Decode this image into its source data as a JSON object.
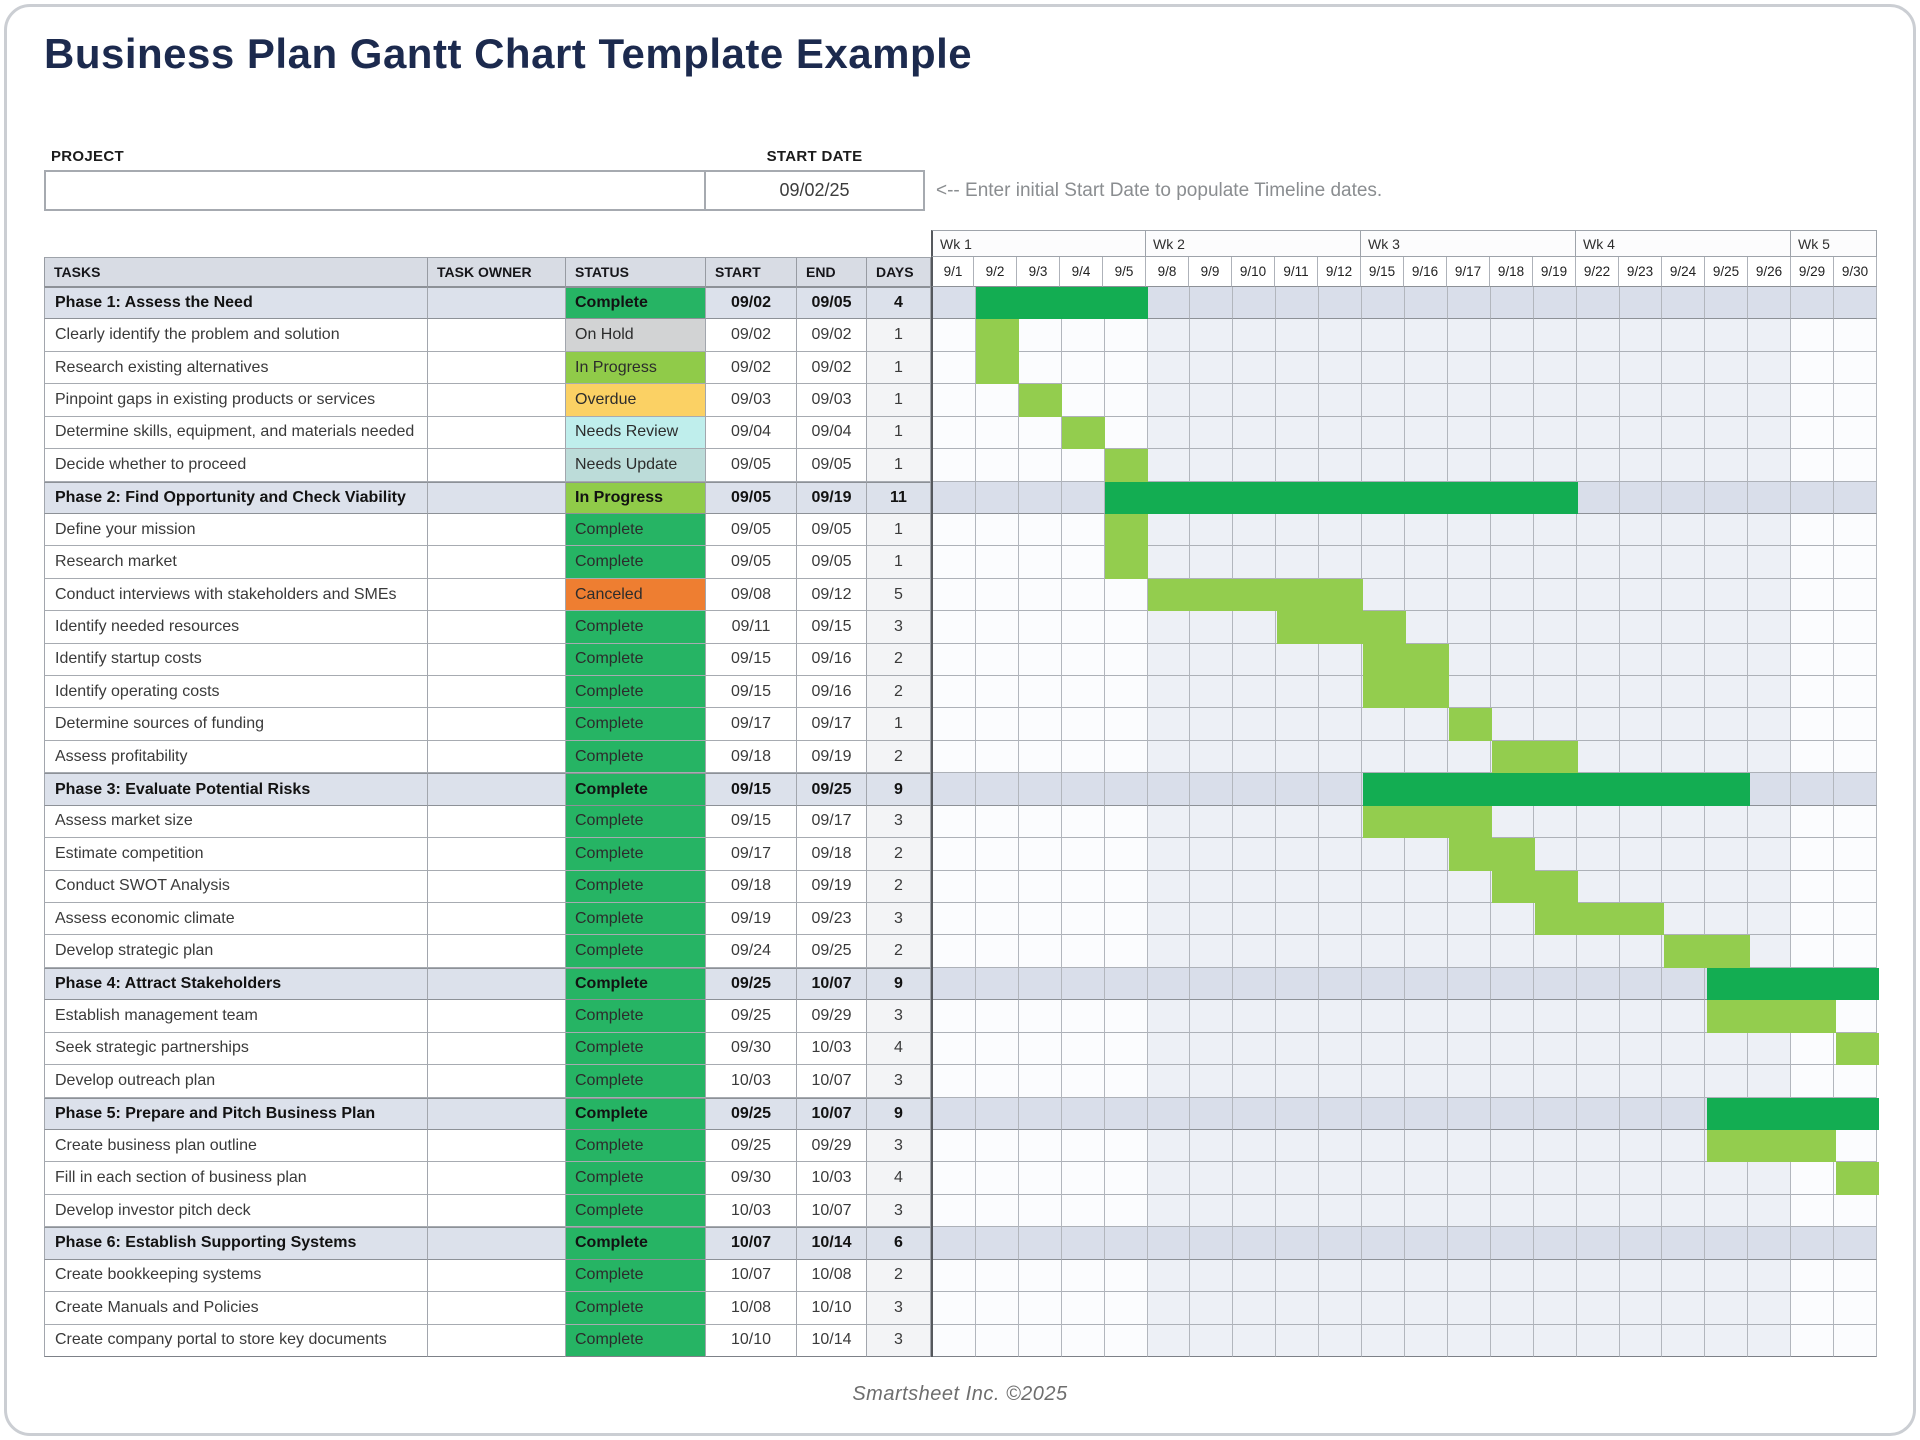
{
  "title": "Business Plan Gantt Chart Template Example",
  "form": {
    "project_label": "PROJECT",
    "project_value": "",
    "start_date_label": "START DATE",
    "start_date_value": "09/02/25",
    "instruction": "<-- Enter initial Start Date to populate Timeline dates."
  },
  "chart_data": {
    "type": "table",
    "subtype": "gantt",
    "columns": [
      "TASKS",
      "TASK OWNER",
      "STATUS",
      "START",
      "END",
      "DAYS"
    ],
    "weeks": [
      {
        "label": "Wk 1",
        "days": [
          "9/1",
          "9/2",
          "9/3",
          "9/4",
          "9/5"
        ],
        "shaded": false
      },
      {
        "label": "Wk 2",
        "days": [
          "9/8",
          "9/9",
          "9/10",
          "9/11",
          "9/12"
        ],
        "shaded": true
      },
      {
        "label": "Wk 3",
        "days": [
          "9/15",
          "9/16",
          "9/17",
          "9/18",
          "9/19"
        ],
        "shaded": true
      },
      {
        "label": "Wk 4",
        "days": [
          "9/22",
          "9/23",
          "9/24",
          "9/25",
          "9/26"
        ],
        "shaded": true
      },
      {
        "label": "Wk 5",
        "days": [
          "9/29",
          "9/30"
        ],
        "shaded": false
      }
    ],
    "statuses": [
      {
        "name": "Complete",
        "color": "#26b464"
      },
      {
        "name": "On Hold",
        "color": "#d2d3d4"
      },
      {
        "name": "In Progress",
        "color": "#90cb49"
      },
      {
        "name": "Overdue",
        "color": "#fbd164"
      },
      {
        "name": "Needs Review",
        "color": "#bfeeec"
      },
      {
        "name": "Needs Update",
        "color": "#bcdcd9"
      },
      {
        "name": "Canceled",
        "color": "#ee7e31"
      }
    ],
    "rows": [
      {
        "task": "Phase 1: Assess the Need",
        "owner": "",
        "status": "Complete",
        "start": "09/02",
        "end": "09/05",
        "days": "4",
        "phase": true,
        "bar_start": 1,
        "bar_end": 4,
        "bar_clip": false
      },
      {
        "task": "Clearly identify the problem and solution",
        "owner": "",
        "status": "On Hold",
        "start": "09/02",
        "end": "09/02",
        "days": "1",
        "phase": false,
        "bar_start": 1,
        "bar_end": 1,
        "bar_clip": false
      },
      {
        "task": "Research existing alternatives",
        "owner": "",
        "status": "In Progress",
        "start": "09/02",
        "end": "09/02",
        "days": "1",
        "phase": false,
        "bar_start": 1,
        "bar_end": 1,
        "bar_clip": false
      },
      {
        "task": "Pinpoint gaps in existing products or services",
        "owner": "",
        "status": "Overdue",
        "start": "09/03",
        "end": "09/03",
        "days": "1",
        "phase": false,
        "bar_start": 2,
        "bar_end": 2,
        "bar_clip": false
      },
      {
        "task": "Determine skills, equipment, and materials needed",
        "owner": "",
        "status": "Needs Review",
        "start": "09/04",
        "end": "09/04",
        "days": "1",
        "phase": false,
        "bar_start": 3,
        "bar_end": 3,
        "bar_clip": false
      },
      {
        "task": "Decide whether to proceed",
        "owner": "",
        "status": "Needs Update",
        "start": "09/05",
        "end": "09/05",
        "days": "1",
        "phase": false,
        "bar_start": 4,
        "bar_end": 4,
        "bar_clip": false
      },
      {
        "task": "Phase 2: Find Opportunity and Check Viability",
        "owner": "",
        "status": "In Progress",
        "start": "09/05",
        "end": "09/19",
        "days": "11",
        "phase": true,
        "bar_start": 4,
        "bar_end": 14,
        "bar_clip": false
      },
      {
        "task": "Define your mission",
        "owner": "",
        "status": "Complete",
        "start": "09/05",
        "end": "09/05",
        "days": "1",
        "phase": false,
        "bar_start": 4,
        "bar_end": 4,
        "bar_clip": false
      },
      {
        "task": "Research market",
        "owner": "",
        "status": "Complete",
        "start": "09/05",
        "end": "09/05",
        "days": "1",
        "phase": false,
        "bar_start": 4,
        "bar_end": 4,
        "bar_clip": false
      },
      {
        "task": "Conduct interviews with stakeholders and SMEs",
        "owner": "",
        "status": "Canceled",
        "start": "09/08",
        "end": "09/12",
        "days": "5",
        "phase": false,
        "bar_start": 5,
        "bar_end": 9,
        "bar_clip": false
      },
      {
        "task": "Identify needed resources",
        "owner": "",
        "status": "Complete",
        "start": "09/11",
        "end": "09/15",
        "days": "3",
        "phase": false,
        "bar_start": 8,
        "bar_end": 10,
        "bar_clip": false
      },
      {
        "task": "Identify startup costs",
        "owner": "",
        "status": "Complete",
        "start": "09/15",
        "end": "09/16",
        "days": "2",
        "phase": false,
        "bar_start": 10,
        "bar_end": 11,
        "bar_clip": false
      },
      {
        "task": "Identify operating costs",
        "owner": "",
        "status": "Complete",
        "start": "09/15",
        "end": "09/16",
        "days": "2",
        "phase": false,
        "bar_start": 10,
        "bar_end": 11,
        "bar_clip": false
      },
      {
        "task": "Determine sources of funding",
        "owner": "",
        "status": "Complete",
        "start": "09/17",
        "end": "09/17",
        "days": "1",
        "phase": false,
        "bar_start": 12,
        "bar_end": 12,
        "bar_clip": false
      },
      {
        "task": "Assess profitability",
        "owner": "",
        "status": "Complete",
        "start": "09/18",
        "end": "09/19",
        "days": "2",
        "phase": false,
        "bar_start": 13,
        "bar_end": 14,
        "bar_clip": false
      },
      {
        "task": "Phase 3: Evaluate Potential Risks",
        "owner": "",
        "status": "Complete",
        "start": "09/15",
        "end": "09/25",
        "days": "9",
        "phase": true,
        "bar_start": 10,
        "bar_end": 18,
        "bar_clip": false
      },
      {
        "task": "Assess market size",
        "owner": "",
        "status": "Complete",
        "start": "09/15",
        "end": "09/17",
        "days": "3",
        "phase": false,
        "bar_start": 10,
        "bar_end": 12,
        "bar_clip": false
      },
      {
        "task": "Estimate competition",
        "owner": "",
        "status": "Complete",
        "start": "09/17",
        "end": "09/18",
        "days": "2",
        "phase": false,
        "bar_start": 12,
        "bar_end": 13,
        "bar_clip": false
      },
      {
        "task": "Conduct SWOT Analysis",
        "owner": "",
        "status": "Complete",
        "start": "09/18",
        "end": "09/19",
        "days": "2",
        "phase": false,
        "bar_start": 13,
        "bar_end": 14,
        "bar_clip": false
      },
      {
        "task": "Assess economic climate",
        "owner": "",
        "status": "Complete",
        "start": "09/19",
        "end": "09/23",
        "days": "3",
        "phase": false,
        "bar_start": 14,
        "bar_end": 16,
        "bar_clip": false
      },
      {
        "task": "Develop strategic plan",
        "owner": "",
        "status": "Complete",
        "start": "09/24",
        "end": "09/25",
        "days": "2",
        "phase": false,
        "bar_start": 17,
        "bar_end": 18,
        "bar_clip": false
      },
      {
        "task": "Phase 4: Attract Stakeholders",
        "owner": "",
        "status": "Complete",
        "start": "09/25",
        "end": "10/07",
        "days": "9",
        "phase": true,
        "bar_start": 18,
        "bar_end": 21,
        "bar_clip": true
      },
      {
        "task": "Establish management team",
        "owner": "",
        "status": "Complete",
        "start": "09/25",
        "end": "09/29",
        "days": "3",
        "phase": false,
        "bar_start": 18,
        "bar_end": 20,
        "bar_clip": false
      },
      {
        "task": "Seek strategic partnerships",
        "owner": "",
        "status": "Complete",
        "start": "09/30",
        "end": "10/03",
        "days": "4",
        "phase": false,
        "bar_start": 21,
        "bar_end": 21,
        "bar_clip": true
      },
      {
        "task": "Develop outreach plan",
        "owner": "",
        "status": "Complete",
        "start": "10/03",
        "end": "10/07",
        "days": "3",
        "phase": false,
        "bar_start": null,
        "bar_end": null,
        "bar_clip": false
      },
      {
        "task": "Phase 5: Prepare and Pitch Business Plan",
        "owner": "",
        "status": "Complete",
        "start": "09/25",
        "end": "10/07",
        "days": "9",
        "phase": true,
        "bar_start": 18,
        "bar_end": 21,
        "bar_clip": true
      },
      {
        "task": "Create business plan outline",
        "owner": "",
        "status": "Complete",
        "start": "09/25",
        "end": "09/29",
        "days": "3",
        "phase": false,
        "bar_start": 18,
        "bar_end": 20,
        "bar_clip": false
      },
      {
        "task": "Fill in each section of business plan",
        "owner": "",
        "status": "Complete",
        "start": "09/30",
        "end": "10/03",
        "days": "4",
        "phase": false,
        "bar_start": 21,
        "bar_end": 21,
        "bar_clip": true
      },
      {
        "task": "Develop investor pitch deck",
        "owner": "",
        "status": "Complete",
        "start": "10/03",
        "end": "10/07",
        "days": "3",
        "phase": false,
        "bar_start": null,
        "bar_end": null,
        "bar_clip": false
      },
      {
        "task": "Phase 6: Establish Supporting Systems",
        "owner": "",
        "status": "Complete",
        "start": "10/07",
        "end": "10/14",
        "days": "6",
        "phase": true,
        "bar_start": null,
        "bar_end": null,
        "bar_clip": false
      },
      {
        "task": "Create bookkeeping systems",
        "owner": "",
        "status": "Complete",
        "start": "10/07",
        "end": "10/08",
        "days": "2",
        "phase": false,
        "bar_start": null,
        "bar_end": null,
        "bar_clip": false
      },
      {
        "task": "Create Manuals and Policies",
        "owner": "",
        "status": "Complete",
        "start": "10/08",
        "end": "10/10",
        "days": "3",
        "phase": false,
        "bar_start": null,
        "bar_end": null,
        "bar_clip": false
      },
      {
        "task": "Create company portal to store key documents",
        "owner": "",
        "status": "Complete",
        "start": "10/10",
        "end": "10/14",
        "days": "3",
        "phase": false,
        "bar_start": null,
        "bar_end": null,
        "bar_clip": false
      }
    ]
  },
  "colors": {
    "bar_dark_green": "#13ad52",
    "bar_light_green": "#93cd4e",
    "phase_row_bg": "#dce1eb",
    "header_bg": "#d8dce4",
    "title_color": "#1c2a4e"
  },
  "footer": {
    "text": "Smartsheet Inc. ©2025"
  }
}
